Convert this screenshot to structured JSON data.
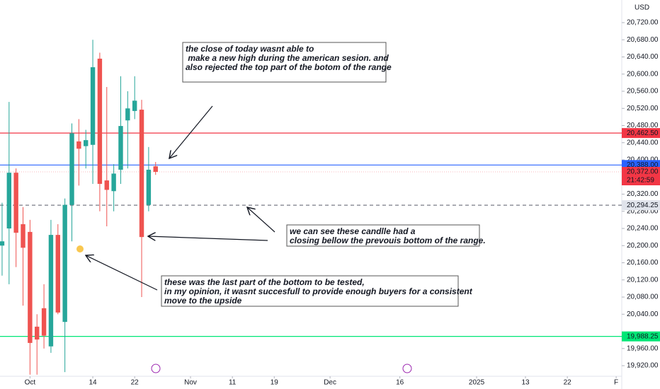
{
  "chart_data": {
    "type": "candlestick",
    "currency": "USD",
    "up_color": "#26a69a",
    "down_color": "#ef5350",
    "xlim": [
      -0.3,
      88.8
    ],
    "ylim": [
      19895.3,
      20772.8
    ],
    "xticks": [
      {
        "value": 4,
        "label": "Oct"
      },
      {
        "value": 13,
        "label": "14"
      },
      {
        "value": 19,
        "label": "22"
      },
      {
        "value": 27,
        "label": "Nov"
      },
      {
        "value": 33,
        "label": "11"
      },
      {
        "value": 39,
        "label": "19"
      },
      {
        "value": 47,
        "label": "Dec"
      },
      {
        "value": 57,
        "label": "16"
      },
      {
        "value": 68,
        "label": "2025"
      },
      {
        "value": 75,
        "label": "13"
      },
      {
        "value": 81,
        "label": "22"
      },
      {
        "value": 88,
        "label": "F"
      }
    ],
    "yticks": [
      {
        "value": 19920,
        "label": "19,920.00"
      },
      {
        "value": 19960,
        "label": "19,960.00"
      },
      {
        "value": 20040,
        "label": "20,040.00"
      },
      {
        "value": 20080,
        "label": "20,080.00"
      },
      {
        "value": 20120,
        "label": "20,120.00"
      },
      {
        "value": 20160,
        "label": "20,160.00"
      },
      {
        "value": 20200,
        "label": "20,200.00"
      },
      {
        "value": 20240,
        "label": "20,240.00"
      },
      {
        "value": 20280,
        "label": "20,280.00"
      },
      {
        "value": 20320,
        "label": "20,320.00"
      },
      {
        "value": 20400,
        "label": "20,400.00"
      },
      {
        "value": 20440,
        "label": "20,440.00"
      },
      {
        "value": 20480,
        "label": "20,480.00"
      },
      {
        "value": 20520,
        "label": "20,520.00"
      },
      {
        "value": 20560,
        "label": "20,560.00"
      },
      {
        "value": 20600,
        "label": "20,600.00"
      },
      {
        "value": 20640,
        "label": "20,640.00"
      },
      {
        "value": 20680,
        "label": "20,680.00"
      },
      {
        "value": 20720,
        "label": "20,720.00"
      }
    ],
    "candles": [
      {
        "open": 20200,
        "high": 20300,
        "low": 20130,
        "close": 20210
      },
      {
        "open": 20240,
        "high": 20535,
        "low": 20110,
        "close": 20370
      },
      {
        "open": 20370,
        "high": 20380,
        "low": 20150,
        "close": 20230
      },
      {
        "open": 20250,
        "high": 20290,
        "low": 20060,
        "close": 20195
      },
      {
        "open": 20232,
        "high": 20260,
        "low": 19899,
        "close": 19973
      },
      {
        "open": 20011,
        "high": 20040,
        "low": 19899,
        "close": 19981
      },
      {
        "open": 20054,
        "high": 20110,
        "low": 19960,
        "close": 19990
      },
      {
        "open": 19965,
        "high": 20260,
        "low": 19950,
        "close": 20225
      },
      {
        "open": 20225,
        "high": 20250,
        "low": 20040,
        "close": 20044
      },
      {
        "open": 20022,
        "high": 20310,
        "low": 19905,
        "close": 20295
      },
      {
        "open": 20295,
        "high": 20485,
        "low": 20210,
        "close": 20462
      },
      {
        "open": 20443,
        "high": 20495,
        "low": 20340,
        "close": 20426
      },
      {
        "open": 20432,
        "high": 20470,
        "low": 20380,
        "close": 20446
      },
      {
        "open": 20435,
        "high": 20680,
        "low": 20344,
        "close": 20616
      },
      {
        "open": 20636,
        "high": 20650,
        "low": 20280,
        "close": 20344
      },
      {
        "open": 20352,
        "high": 20570,
        "low": 20245,
        "close": 20330
      },
      {
        "open": 20327,
        "high": 20390,
        "low": 20280,
        "close": 20368
      },
      {
        "open": 20377,
        "high": 20595,
        "low": 20344,
        "close": 20479
      },
      {
        "open": 20492,
        "high": 20560,
        "low": 20380,
        "close": 20520
      },
      {
        "open": 20514,
        "high": 20595,
        "low": 20495,
        "close": 20538
      },
      {
        "open": 20517,
        "high": 20540,
        "low": 20080,
        "close": 20220
      },
      {
        "open": 20295,
        "high": 20430,
        "low": 20280,
        "close": 20377
      },
      {
        "open": 20385,
        "high": 20395,
        "low": 20365,
        "close": 20372
      }
    ],
    "levels": [
      {
        "value": 20462.5,
        "label": "20,462.50",
        "color": "#f23645",
        "style": "solid"
      },
      {
        "value": 20388,
        "label": "20,388.00",
        "color": "#2962ff",
        "style": "solid"
      },
      {
        "value": 20294.25,
        "label": "20,294.25",
        "color": "#787b86",
        "style": "dashed"
      },
      {
        "value": 19988.25,
        "label": "19,988.25",
        "color": "#00e676",
        "style": "solid"
      }
    ],
    "last_price": {
      "value": 20372,
      "label": "20,372.00",
      "countdown": "21:42:59",
      "color": "#f23645"
    },
    "annotations": [
      [
        "the close of today wasnt able to",
        " make a new high during the american sesion. and",
        "also rejected the top part of the botom of the range"
      ],
      [
        "we can see these candlle had a",
        "closing bellow the prevouis bottom of the range."
      ],
      [
        "these was the last part of the bottom to be tested,",
        "in my opinion, it wasnt succesfull to provide enough buyers for a consistent",
        "move to the upside"
      ]
    ]
  }
}
